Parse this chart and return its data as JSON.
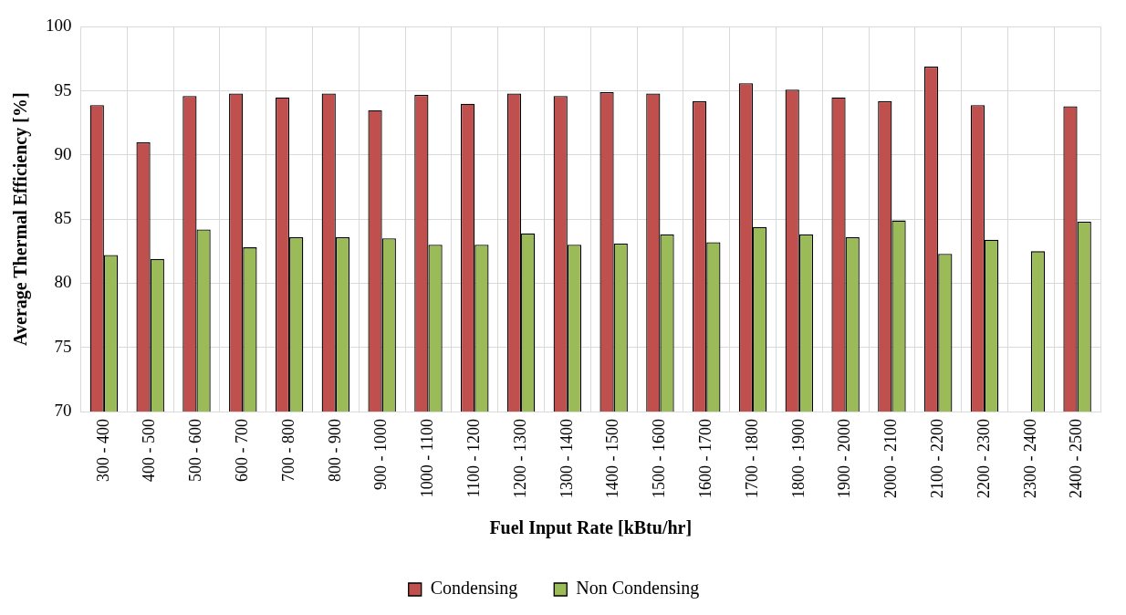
{
  "chart_data": {
    "type": "bar",
    "xlabel": "Fuel Input Rate [kBtu/hr]",
    "ylabel": "Average Thermal Efficiency [%]",
    "categories": [
      "300 - 400",
      "400 - 500",
      "500 - 600",
      "600 - 700",
      "700 - 800",
      "800 - 900",
      "900 - 1000",
      "1000 - 1100",
      "1100 - 1200",
      "1200 - 1300",
      "1300 - 1400",
      "1400 - 1500",
      "1500 - 1600",
      "1600 - 1700",
      "1700 - 1800",
      "1800 - 1900",
      "1900 - 2000",
      "2000 - 2100",
      "2100 - 2200",
      "2200 - 2300",
      "2300 - 2400",
      "2400 - 2500"
    ],
    "series": [
      {
        "name": "Condensing",
        "color": "#c0504d",
        "values": [
          93.9,
          91.0,
          94.6,
          94.8,
          94.5,
          94.8,
          93.5,
          94.7,
          94.0,
          94.8,
          94.6,
          94.9,
          94.8,
          94.2,
          95.6,
          95.1,
          94.5,
          94.2,
          96.9,
          93.9,
          null,
          93.8
        ]
      },
      {
        "name": "Non Condensing",
        "color": "#9bbb59",
        "values": [
          82.2,
          81.9,
          84.2,
          82.8,
          83.6,
          83.6,
          83.5,
          83.0,
          83.0,
          83.9,
          83.0,
          83.1,
          83.8,
          83.2,
          84.4,
          83.8,
          83.6,
          84.9,
          82.3,
          83.4,
          82.5,
          84.8
        ]
      }
    ],
    "ylim": [
      70,
      100
    ],
    "yticks": [
      70,
      75,
      80,
      85,
      90,
      95,
      100
    ],
    "grid": true,
    "legend": "bottom"
  }
}
